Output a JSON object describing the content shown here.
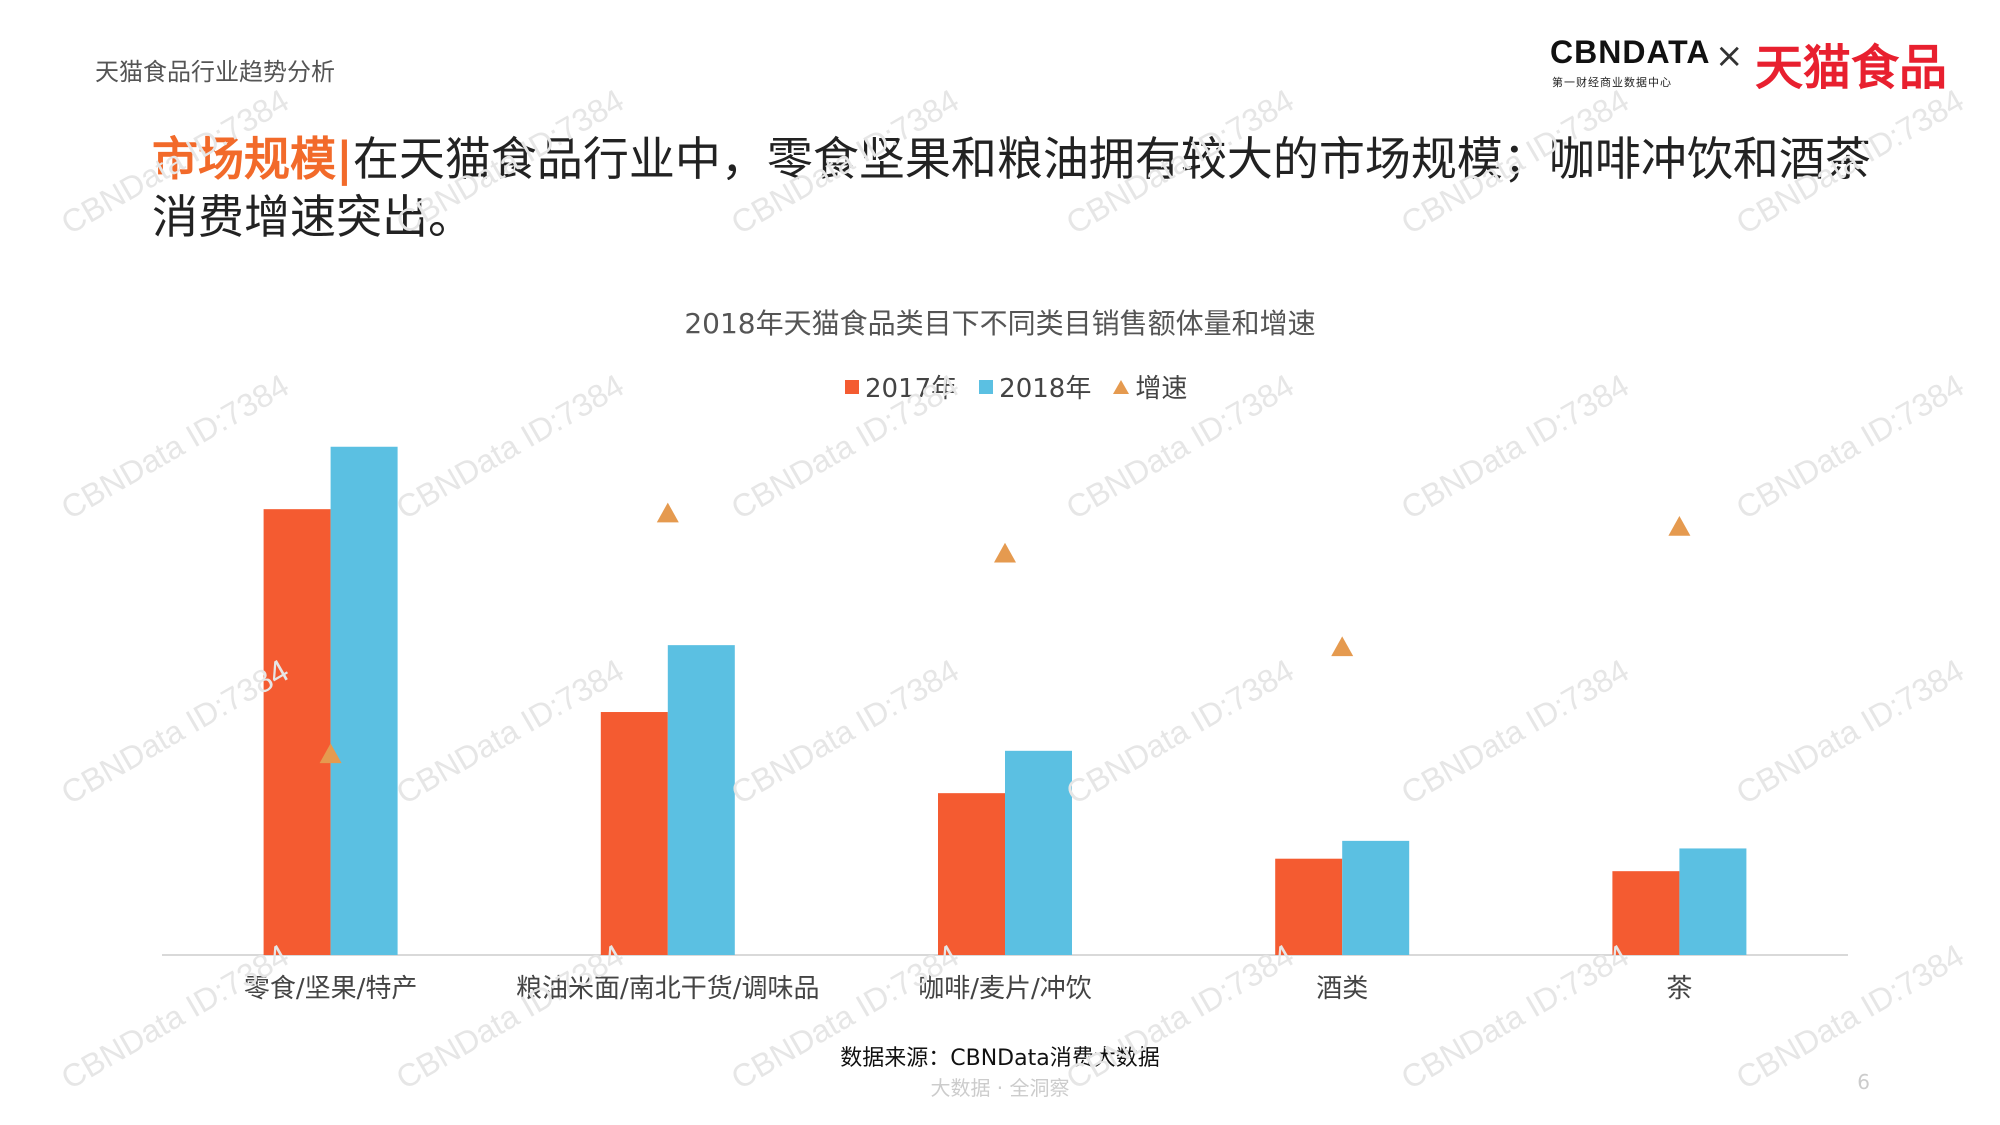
{
  "header": {
    "section_title": "天猫食品行业趋势分析",
    "logo_cbn": "CBNDATA",
    "logo_cbn_sub": "第一财经商业数据中心",
    "logo_x": "×",
    "logo_tmall": "天猫食品"
  },
  "headline": {
    "tag": "市场规模|",
    "text": "在天猫食品行业中，零食坚果和粮油拥有较大的市场规模；咖啡冲饮和酒茶消费增速突出。"
  },
  "chart_data": {
    "type": "bar",
    "title": "2018年天猫食品类目下不同类目销售额体量和增速",
    "categories": [
      "零食/坚果/特产",
      "粮油米面/南北干货/调味品",
      "咖啡/麦片/冲饮",
      "酒类",
      "茶"
    ],
    "series": [
      {
        "name": "2017年",
        "kind": "bar",
        "color": "#f45b31",
        "values": [
          100,
          54.5,
          36.3,
          21.6,
          18.8
        ]
      },
      {
        "name": "2018年",
        "kind": "bar",
        "color": "#5bc0e2",
        "values": [
          114,
          69.5,
          45.8,
          25.6,
          23.9
        ]
      },
      {
        "name": "增速",
        "kind": "marker",
        "marker": "triangle",
        "color": "#e59a4f",
        "values": [
          15,
          33,
          30,
          23,
          32
        ]
      }
    ],
    "ylim": [
      0,
      120
    ],
    "growth_ylim": [
      0,
      40
    ],
    "grid": false,
    "legend_position": "top-center",
    "show_y_axis": false
  },
  "source": "数据来源：CBNData消费大数据",
  "footer": "大数据 · 全洞察",
  "page_number": "6",
  "watermark": "CBNData ID:7384"
}
